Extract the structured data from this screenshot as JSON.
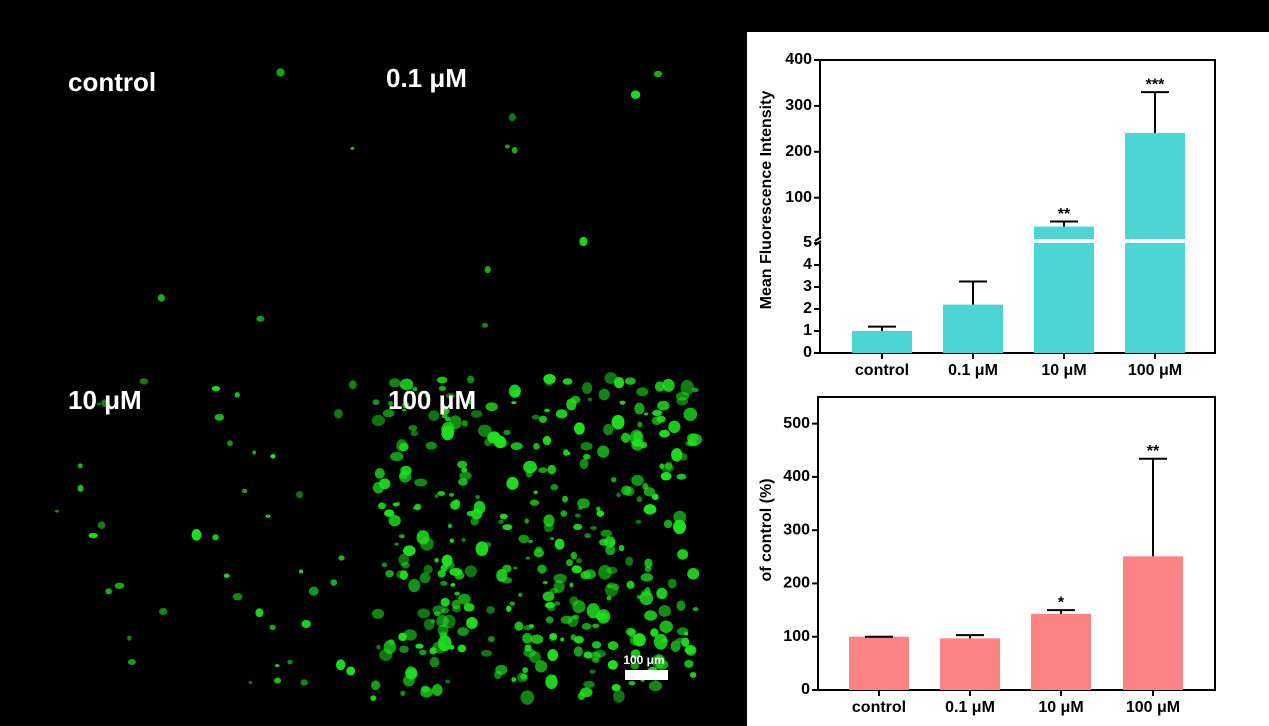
{
  "micrographs": {
    "labels": [
      "control",
      "0.1 μM",
      "10 μM",
      "100 μM"
    ],
    "scale_bar": "100 μm"
  },
  "chart_data": [
    {
      "type": "bar",
      "y_label": "Mean Fluorescence Intensity",
      "categories": [
        "control",
        "0.1 μM",
        "10 μM",
        "100 μM"
      ],
      "values": [
        1.0,
        2.2,
        37,
        241
      ],
      "errors": [
        0.2,
        1.05,
        11,
        89
      ],
      "annotations": [
        null,
        null,
        "**",
        "***"
      ],
      "color": "#4dd4d4",
      "ylim": [
        0,
        5
      ],
      "yticks": [
        0,
        1,
        2,
        3,
        4,
        5
      ],
      "axis_break": {
        "ylim": [
          10,
          400
        ],
        "yticks": [
          100,
          200,
          300,
          400
        ]
      }
    },
    {
      "type": "bar",
      "y_label": "of control (%)",
      "categories": [
        "control",
        "0.1 μM",
        "10 μM",
        "100 μM"
      ],
      "values": [
        100,
        97,
        143,
        251
      ],
      "errors": [
        0,
        6,
        7,
        183
      ],
      "annotations": [
        null,
        null,
        "*",
        "**"
      ],
      "color": "#fc8383",
      "ylim": [
        0,
        550
      ],
      "yticks": [
        0,
        100,
        200,
        300,
        400,
        500
      ]
    }
  ]
}
